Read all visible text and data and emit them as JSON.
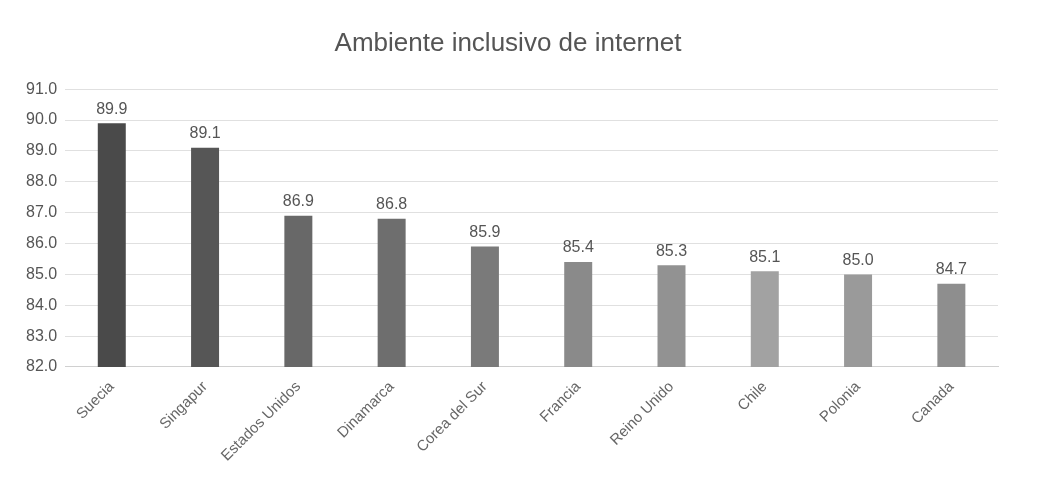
{
  "chart_data": {
    "type": "bar",
    "title": "Ambiente inclusivo de internet",
    "categories": [
      "Suecia",
      "Singapur",
      "Estados Unidos",
      "Dinamarca",
      "Corea del Sur",
      "Francia",
      "Reino Unido",
      "Chile",
      "Polonia",
      "Canada"
    ],
    "values": [
      89.9,
      89.1,
      86.9,
      86.8,
      85.9,
      85.4,
      85.3,
      85.1,
      85.0,
      84.7
    ],
    "colors": [
      "#4a4a4a",
      "#565656",
      "#686868",
      "#6e6e6e",
      "#7a7a7a",
      "#8a8a8a",
      "#929292",
      "#a2a2a2",
      "#9a9a9a",
      "#8e8e8e"
    ],
    "ylim": [
      82,
      91
    ],
    "yticks": [
      {
        "value": 82,
        "label": "82.0"
      },
      {
        "value": 83,
        "label": "83.0"
      },
      {
        "value": 84,
        "label": "84.0"
      },
      {
        "value": 85,
        "label": "85.0"
      },
      {
        "value": 86,
        "label": "86.0"
      },
      {
        "value": 87,
        "label": "87.0"
      },
      {
        "value": 88,
        "label": "88.0"
      },
      {
        "value": 89,
        "label": "89.0"
      },
      {
        "value": 90,
        "label": "90.0"
      },
      {
        "value": 91,
        "label": "91.0"
      }
    ],
    "value_labels": [
      "89.9",
      "89.1",
      "86.9",
      "86.8",
      "85.9",
      "85.4",
      "85.3",
      "85.1",
      "85.0",
      "84.7"
    ],
    "grid": "y"
  }
}
